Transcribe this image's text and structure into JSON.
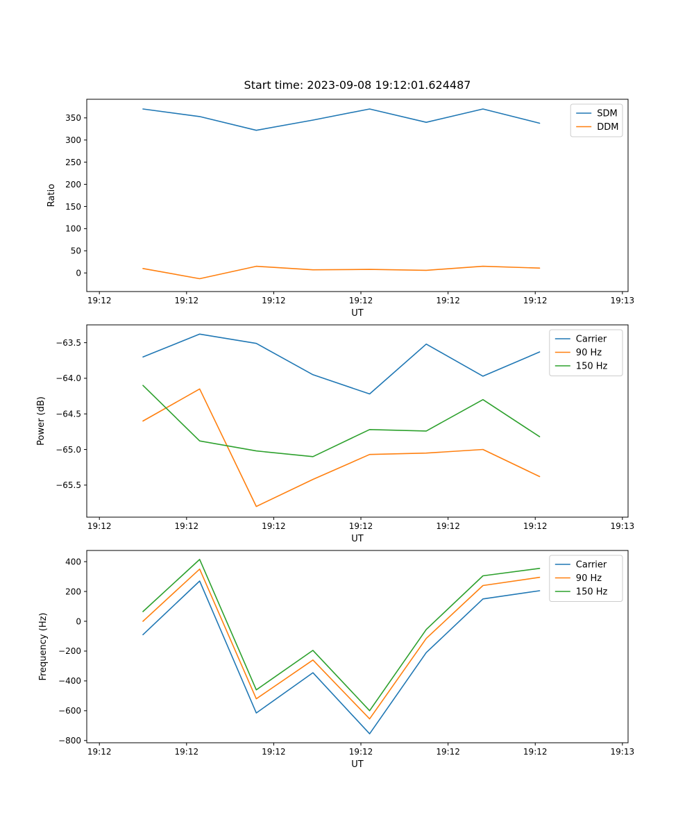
{
  "figure": {
    "title": "Start time: 2023-09-08 19:12:01.624487",
    "background": "#ffffff"
  },
  "colors": {
    "blue": "#1f77b4",
    "orange": "#ff7f0e",
    "green": "#2ca02c"
  },
  "chart_data": [
    {
      "id": "ratio",
      "type": "line",
      "title": "Start time: 2023-09-08 19:12:01.624487",
      "xlabel": "UT",
      "ylabel": "Ratio",
      "x_unit": "seconds after 19:12:00 UT",
      "xlim": [
        -1.45,
        60.65
      ],
      "ylim": [
        -42,
        392
      ],
      "x_ticks": [
        0,
        10,
        20,
        30,
        40,
        50,
        60
      ],
      "x_tick_labels": [
        "19:12",
        "19:12",
        "19:12",
        "19:12",
        "19:12",
        "19:12",
        "19:13"
      ],
      "y_ticks": [
        0,
        50,
        100,
        150,
        200,
        250,
        300,
        350
      ],
      "y_tick_labels": [
        "0",
        "50",
        "100",
        "150",
        "200",
        "250",
        "300",
        "350"
      ],
      "grid": false,
      "legend_position": "upper right",
      "x": [
        5,
        11.5,
        18,
        24.5,
        31,
        37.5,
        44,
        50.5
      ],
      "series": [
        {
          "name": "SDM",
          "color": "#1f77b4",
          "values": [
            370,
            353,
            322,
            345,
            370,
            340,
            370,
            338
          ]
        },
        {
          "name": "DDM",
          "color": "#ff7f0e",
          "values": [
            10,
            -13,
            15,
            7,
            8,
            6,
            15,
            11
          ]
        }
      ]
    },
    {
      "id": "power",
      "type": "line",
      "title": "",
      "xlabel": "UT",
      "ylabel": "Power (dB)",
      "x_unit": "seconds after 19:12:00 UT",
      "xlim": [
        -1.45,
        60.65
      ],
      "ylim": [
        -65.95,
        -63.25
      ],
      "x_ticks": [
        0,
        10,
        20,
        30,
        40,
        50,
        60
      ],
      "x_tick_labels": [
        "19:12",
        "19:12",
        "19:12",
        "19:12",
        "19:12",
        "19:12",
        "19:13"
      ],
      "y_ticks": [
        -65.5,
        -65.0,
        -64.5,
        -64.0,
        -63.5
      ],
      "y_tick_labels": [
        "−65.5",
        "−65.0",
        "−64.5",
        "−64.0",
        "−63.5"
      ],
      "grid": false,
      "legend_position": "upper right",
      "x": [
        5,
        11.5,
        18,
        24.5,
        31,
        37.5,
        44,
        50.5
      ],
      "series": [
        {
          "name": "Carrier",
          "color": "#1f77b4",
          "values": [
            -63.7,
            -63.38,
            -63.51,
            -63.95,
            -64.22,
            -63.52,
            -63.97,
            -63.63
          ]
        },
        {
          "name": "90 Hz",
          "color": "#ff7f0e",
          "values": [
            -64.6,
            -64.15,
            -65.8,
            -65.42,
            -65.07,
            -65.05,
            -65.0,
            -65.38
          ]
        },
        {
          "name": "150 Hz",
          "color": "#2ca02c",
          "values": [
            -64.1,
            -64.88,
            -65.02,
            -65.1,
            -64.72,
            -64.74,
            -64.3,
            -64.82
          ]
        }
      ]
    },
    {
      "id": "frequency",
      "type": "line",
      "title": "",
      "xlabel": "UT",
      "ylabel": "Frequency (Hz)",
      "x_unit": "seconds after 19:12:00 UT",
      "xlim": [
        -1.45,
        60.65
      ],
      "ylim": [
        -815,
        475
      ],
      "x_ticks": [
        0,
        10,
        20,
        30,
        40,
        50,
        60
      ],
      "x_tick_labels": [
        "19:12",
        "19:12",
        "19:12",
        "19:12",
        "19:12",
        "19:12",
        "19:13"
      ],
      "y_ticks": [
        -800,
        -600,
        -400,
        -200,
        0,
        200,
        400
      ],
      "y_tick_labels": [
        "−800",
        "−600",
        "−400",
        "−200",
        "0",
        "200",
        "400"
      ],
      "grid": false,
      "legend_position": "upper right",
      "x": [
        5,
        11.5,
        18,
        24.5,
        31,
        37.5,
        44,
        50.5
      ],
      "series": [
        {
          "name": "Carrier",
          "color": "#1f77b4",
          "values": [
            -90,
            270,
            -615,
            -345,
            -755,
            -210,
            150,
            205
          ]
        },
        {
          "name": "90 Hz",
          "color": "#ff7f0e",
          "values": [
            0,
            350,
            -520,
            -260,
            -655,
            -115,
            240,
            295
          ]
        },
        {
          "name": "150 Hz",
          "color": "#2ca02c",
          "values": [
            65,
            415,
            -460,
            -195,
            -600,
            -55,
            305,
            355
          ]
        }
      ]
    }
  ]
}
